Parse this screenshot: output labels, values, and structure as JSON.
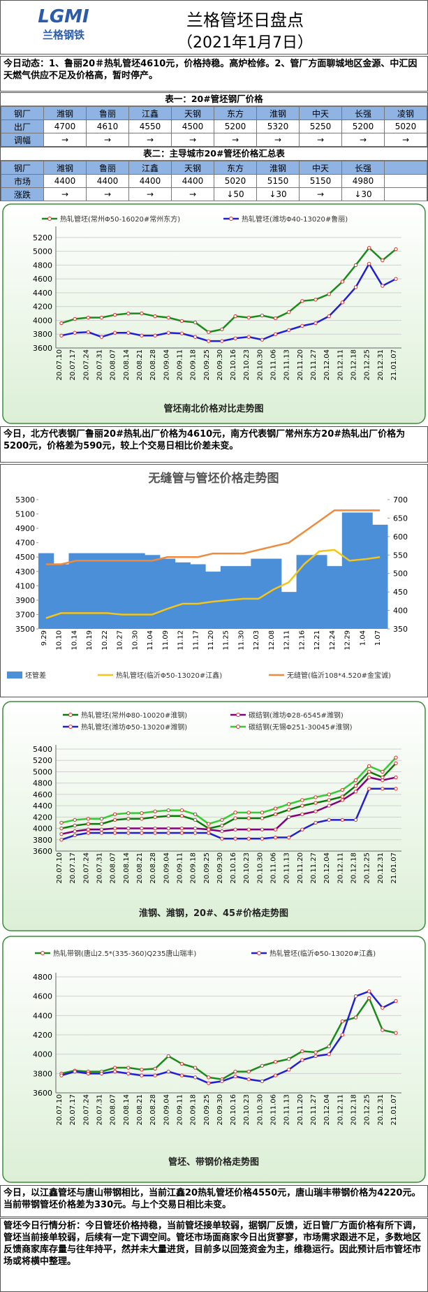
{
  "header": {
    "logo": "LGMI",
    "logo_text": "兰格钢铁",
    "title": "兰格管坯日盘点",
    "date": "（2021年1月7日）"
  },
  "news": "今日动态：1、鲁丽20＃热轧管坯4610元，价格持稳。高炉检修。2、管厂方面聊城地区金源、中汇因天燃气供应不足及价格高，暂时停产。",
  "tables": [
    {
      "title": "表一：20#管坯钢厂价格",
      "rows": [
        [
          "钢厂",
          "潍钢",
          "鲁丽",
          "江鑫",
          "天钢",
          "东方",
          "淮钢",
          "中天",
          "长强",
          "凌钢"
        ],
        [
          "出厂",
          4700,
          4610,
          4550,
          4500,
          5200,
          5320,
          5250,
          5200,
          5020
        ],
        [
          "调幅",
          "→",
          "→",
          "→",
          "→",
          "→",
          "→",
          "→",
          "→",
          "→"
        ]
      ]
    },
    {
      "title": "表二：主导城市20#管坯价格汇总表",
      "rows": [
        [
          "钢厂",
          "潍钢",
          "鲁丽",
          "江鑫",
          "天钢",
          "东方",
          "淮钢",
          "中天",
          "长强"
        ],
        [
          "市场",
          4400,
          4400,
          4400,
          4400,
          5020,
          5150,
          5150,
          4980
        ],
        [
          "涨跌",
          "→",
          "→",
          "→",
          "→",
          "↓50",
          "↓30",
          "→",
          "↓30"
        ]
      ]
    }
  ],
  "paragraphs": [
    "今日，北方代表钢厂鲁丽20#热轧出厂价格为4610元，南方代表钢厂常州东方20#热轧出厂价格为5200元，价格差为590元，较上个交易日相比价差未变。",
    "今日，以江鑫管坯与唐山带钢相比，当前江鑫20热轧管坯价格4550元，唐山瑞丰带钢价格为4220元。当前带钢管坯价格差为330元。与上个交易日相比未变。",
    "管坯今日行情分析：今日管坯价格持稳，当前管坯接单较弱，据钢厂反馈，近日管厂方面价格有所下调，管坯当前接单较弱，后续有一定下调空间。管坯市场面商家今日出货寥寥，市场需求跟进不足，多数地区反馈商家库存量与往年持平，然并未大量进货，目前多以回笼资金为主，维稳运行。因此预计后市管坯市场或将横中整理。"
  ],
  "chart_data": [
    {
      "type": "line",
      "title": "管坯南北价格对比走势图",
      "grid": true,
      "marker_color": "#e03030",
      "categories": [
        "20.07.10",
        "20.07.17",
        "20.07.24",
        "20.07.31",
        "20.08.07",
        "20.08.14",
        "20.08.21",
        "20.08.28",
        "20.09.04",
        "20.09.11",
        "20.09.18",
        "20.09.25",
        "20.09.30",
        "20.10.16",
        "20.10.23",
        "20.10.30",
        "20.11.06",
        "20.11.13",
        "20.11.20",
        "20.11.27",
        "20.12.04",
        "20.12.11",
        "20.12.18",
        "20.12.25",
        "20.12.31",
        "21.01.07"
      ],
      "series": [
        {
          "name": "热轧管坯(常州Φ50-16020#常州东方)",
          "color": "#1a8a1a",
          "values": [
            3960,
            4020,
            4040,
            4040,
            4080,
            4100,
            4100,
            4060,
            4040,
            3990,
            3970,
            3830,
            3870,
            4060,
            4040,
            4070,
            4030,
            4120,
            4280,
            4300,
            4380,
            4560,
            4800,
            5050,
            4870,
            5030
          ]
        },
        {
          "name": "热轧管坯(潍坊Φ40-13020#鲁丽)",
          "color": "#1f1fd8",
          "values": [
            3780,
            3820,
            3830,
            3760,
            3820,
            3820,
            3780,
            3780,
            3820,
            3810,
            3760,
            3700,
            3700,
            3740,
            3760,
            3720,
            3800,
            3860,
            3920,
            3960,
            4060,
            4260,
            4480,
            4820,
            4500,
            4600
          ]
        }
      ],
      "ylim": [
        3600,
        5300
      ],
      "yticks": [
        3600,
        3800,
        4000,
        4200,
        4400,
        4600,
        4800,
        5000,
        5200
      ]
    },
    {
      "type": "line",
      "title": "无缝管与管坯价格走势图",
      "grid": false,
      "categories": [
        "9.29",
        "10.10",
        "10.14",
        "10.19",
        "10.22",
        "10.27",
        "10.30",
        "11.04",
        "11.09",
        "11.12",
        "11.17",
        "11.20",
        "11.25",
        "11.30",
        "12.03",
        "12.08",
        "12.11",
        "12.16",
        "12.21",
        "12.24",
        "12.29",
        "1.04",
        "1.07"
      ],
      "series": [
        {
          "name": "坯管差",
          "type": "area",
          "axis": "y2",
          "color": "#4a8fd8",
          "values": [
            555,
            525,
            555,
            555,
            555,
            555,
            555,
            550,
            540,
            530,
            525,
            505,
            520,
            520,
            540,
            540,
            450,
            550,
            550,
            520,
            665,
            665,
            632
          ]
        },
        {
          "name": "热轧管坯(临沂Φ50-13020#江鑫)",
          "color": "#f5c518",
          "values": [
            3650,
            3720,
            3720,
            3720,
            3720,
            3700,
            3700,
            3700,
            3780,
            3850,
            3850,
            3880,
            3900,
            3920,
            3920,
            4050,
            4150,
            4400,
            4580,
            4600,
            4450,
            4470,
            4500
          ]
        },
        {
          "name": "无缝管(临沂108*4.520#金宝诚)",
          "color": "#f08a3c",
          "values": [
            4400,
            4400,
            4450,
            4450,
            4450,
            4450,
            4450,
            4450,
            4500,
            4500,
            4500,
            4550,
            4550,
            4550,
            4600,
            4650,
            4700,
            4850,
            5000,
            5150,
            5150,
            5150,
            5150
          ]
        }
      ],
      "ylim": [
        3500,
        5300
      ],
      "yticks": [
        3500,
        3700,
        3900,
        4100,
        4300,
        4500,
        4700,
        4900,
        5100,
        5300
      ],
      "y2lim": [
        350,
        700
      ],
      "y2ticks": [
        350,
        400,
        450,
        500,
        550,
        600,
        650,
        700
      ]
    },
    {
      "type": "line",
      "title": "淮钢、潍钢，20#、45#价格走势图",
      "grid": true,
      "marker_color": "#e03030",
      "categories": [
        "20.07.10",
        "20.07.17",
        "20.07.24",
        "20.07.31",
        "20.08.07",
        "20.08.14",
        "20.08.21",
        "20.08.28",
        "20.09.04",
        "20.09.11",
        "20.09.18",
        "20.09.25",
        "20.09.30",
        "20.10.16",
        "20.10.23",
        "20.10.30",
        "20.11.06",
        "20.11.13",
        "20.11.20",
        "20.11.27",
        "20.12.04",
        "20.12.11",
        "20.12.18",
        "20.12.25",
        "20.12.31",
        "21.01.07"
      ],
      "series": [
        {
          "name": "热轧管坯(常州Φ80-10020#淮钢)",
          "color": "#0a7a0a",
          "values": [
            4000,
            4050,
            4080,
            4080,
            4150,
            4170,
            4170,
            4200,
            4220,
            4220,
            4150,
            4000,
            4050,
            4180,
            4180,
            4180,
            4250,
            4330,
            4400,
            4450,
            4500,
            4560,
            4750,
            5000,
            4900,
            5150
          ]
        },
        {
          "name": "热轧管坯(潍坊Φ50-13020#潍钢)",
          "color": "#2020d0",
          "values": [
            3800,
            3880,
            3920,
            3920,
            3920,
            3920,
            3920,
            3920,
            3920,
            3920,
            3920,
            3920,
            3820,
            3820,
            3820,
            3820,
            3840,
            3840,
            3980,
            4100,
            4150,
            4150,
            4150,
            4700,
            4700,
            4700
          ]
        },
        {
          "name": "碳结钢(潍坊Φ28-6545#潍钢)",
          "color": "#800080",
          "values": [
            3900,
            3950,
            3980,
            3980,
            4000,
            4000,
            4000,
            4000,
            4000,
            4000,
            4000,
            3980,
            3950,
            3980,
            3980,
            3980,
            3980,
            4200,
            4250,
            4300,
            4400,
            4500,
            4650,
            4900,
            4850,
            4900
          ]
        },
        {
          "name": "碳结钢(无锡Φ251-30045#淮钢)",
          "color": "#33cc33",
          "values": [
            4100,
            4150,
            4170,
            4170,
            4250,
            4270,
            4270,
            4300,
            4320,
            4320,
            4250,
            4080,
            4150,
            4280,
            4280,
            4280,
            4350,
            4430,
            4500,
            4550,
            4600,
            4680,
            4850,
            5100,
            5000,
            5250
          ]
        }
      ],
      "ylim": [
        3600,
        5400
      ],
      "yticks": [
        3600,
        3800,
        4000,
        4200,
        4400,
        4600,
        4800,
        5000,
        5200,
        5400
      ]
    },
    {
      "type": "line",
      "title": "管坯、带钢价格走势图",
      "grid": true,
      "marker_color": "#e03030",
      "categories": [
        "20.07.10",
        "20.07.17",
        "20.07.24",
        "20.07.31",
        "20.08.07",
        "20.08.14",
        "20.08.21",
        "20.08.28",
        "20.09.04",
        "20.09.11",
        "20.09.18",
        "20.09.25",
        "20.09.30",
        "20.10.16",
        "20.10.23",
        "20.10.30",
        "20.11.06",
        "20.11.13",
        "20.11.20",
        "20.11.27",
        "20.12.04",
        "20.12.11",
        "20.12.18",
        "20.12.25",
        "20.12.31",
        "21.01.07"
      ],
      "series": [
        {
          "name": "热轧带钢(唐山2.5*(335-360)Q235唐山瑞丰)",
          "color": "#1a8a1a",
          "values": [
            3800,
            3830,
            3820,
            3820,
            3860,
            3860,
            3840,
            3850,
            3980,
            3900,
            3860,
            3760,
            3740,
            3820,
            3820,
            3880,
            3920,
            3950,
            4030,
            4020,
            4080,
            4340,
            4380,
            4580,
            4250,
            4220
          ]
        },
        {
          "name": "热轧管坯(临沂Φ50-13020#江鑫)",
          "color": "#1f1fd8",
          "values": [
            3780,
            3820,
            3800,
            3800,
            3820,
            3800,
            3780,
            3780,
            3820,
            3780,
            3760,
            3700,
            3720,
            3770,
            3740,
            3720,
            3780,
            3840,
            3940,
            3980,
            4000,
            4200,
            4600,
            4650,
            4480,
            4550
          ]
        }
      ],
      "ylim": [
        3600,
        4800
      ],
      "yticks": [
        3600,
        3800,
        4000,
        4200,
        4400,
        4600,
        4800
      ]
    }
  ]
}
